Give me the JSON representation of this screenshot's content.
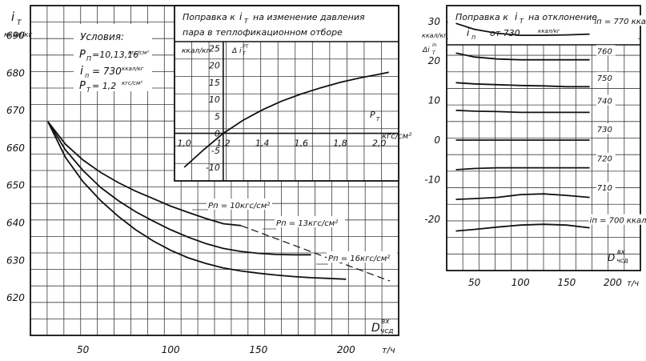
{
  "chart_data": [
    {
      "id": "main",
      "type": "line",
      "ylabel_main": "i",
      "ylabel_sub": "T",
      "ylabel_unit": "ккал/кг",
      "xlabel_main": "D",
      "xlabel_sup": "вх",
      "xlabel_sub": "чсд",
      "x_unit": "т/ч",
      "x_ticks": [
        "50",
        "100",
        "150",
        "200"
      ],
      "y_ticks": [
        "690",
        "680",
        "670",
        "660",
        "650",
        "640",
        "630",
        "620"
      ],
      "xlim": [
        20,
        230
      ],
      "ylim": [
        610,
        698
      ],
      "conditions": {
        "title": "Условия:",
        "line1_text": "P",
        "line1_sub": "П",
        "line1_value": "=10,13,16",
        "line1_unit": "кгс/см²",
        "line2_text": "i",
        "line2_sub": "п",
        "line2_value": "= 730",
        "line2_unit": "ккал/кг",
        "line3_text": "P",
        "line3_sub": "T",
        "line3_value": "= 1,2",
        "line3_unit": "кгс/см²"
      },
      "series": [
        {
          "name": "Pп = 10кгс/см²",
          "x": [
            30,
            40,
            50,
            60,
            70,
            80,
            90,
            100,
            110,
            120,
            130,
            140
          ],
          "y": [
            667,
            661,
            656.8,
            653.5,
            650.8,
            648.5,
            646.5,
            644.5,
            642.8,
            641.2,
            639.8,
            639.3
          ]
        },
        {
          "name": "Pп = 13кгс/см²",
          "x": [
            30,
            40,
            50,
            60,
            70,
            80,
            90,
            100,
            110,
            120,
            130,
            140,
            150,
            160,
            170,
            180
          ],
          "y": [
            667,
            659.5,
            654,
            649.5,
            646,
            643,
            640.5,
            638.2,
            636.2,
            634.5,
            633.2,
            632.4,
            631.9,
            631.6,
            631.5,
            631.5
          ]
        },
        {
          "name": "Pп = 16кгс/см²",
          "x": [
            30,
            40,
            50,
            60,
            70,
            80,
            90,
            100,
            110,
            120,
            130,
            140,
            150,
            160,
            170,
            180,
            190,
            200
          ],
          "y": [
            667,
            657.5,
            651,
            646,
            641.8,
            638.2,
            635.2,
            632.7,
            630.7,
            629.2,
            628,
            627.2,
            626.6,
            626.1,
            625.7,
            625.4,
            625.2,
            625
          ]
        }
      ],
      "dashed_extension": {
        "x": [
          140,
          225
        ],
        "y": [
          639.3,
          624.5
        ]
      }
    },
    {
      "id": "inset",
      "type": "line",
      "title_line1_prefix": "Поправка к",
      "title_line1_var": "i",
      "title_line1_sub": "T",
      "title_line1_suffix": "на изменение давления",
      "title_line2": "пара в теплофикационном отборе",
      "ylabel": "ккал/кг",
      "ylabel_var": "Δ i",
      "ylabel_var_sup": "PT",
      "ylabel_var_sub": "T",
      "xlabel": "P",
      "xlabel_sub": "T",
      "x_unit": "кгс/см²",
      "x_ticks": [
        "1,0",
        "1,2",
        "1,4",
        "1,6",
        "1,8",
        "2,0"
      ],
      "y_ticks": [
        "25",
        "20",
        "15",
        "10",
        "5",
        "0",
        "-5",
        "-10"
      ],
      "xlim": [
        0.95,
        2.1
      ],
      "ylim": [
        -14,
        27
      ],
      "series": [
        {
          "name": "",
          "x": [
            1.0,
            1.1,
            1.2,
            1.3,
            1.4,
            1.5,
            1.6,
            1.7,
            1.8,
            1.9,
            2.0,
            2.05
          ],
          "y": [
            -10,
            -4.8,
            0,
            3.8,
            6.9,
            9.5,
            11.6,
            13.4,
            15,
            16.3,
            17.4,
            18
          ]
        }
      ]
    },
    {
      "id": "right",
      "type": "line",
      "title_line1_prefix": "Поправка к",
      "title_line1_var": "i",
      "title_line1_sub": "T",
      "title_line1_suffix": "на отклонение",
      "title_line2_var": "i",
      "title_line2_sub": "п",
      "title_line2_text": "от 730",
      "title_line2_unit": "ккал/кг",
      "ylabel_unit": "ккал/кг",
      "ylabel_var": "Δi",
      "ylabel_var_sup": "in",
      "ylabel_var_sub": "T",
      "xlabel_main": "D",
      "xlabel_sup": "вх",
      "xlabel_sub": "чсд",
      "x_unit": "т/ч",
      "x_ticks": [
        "50",
        "100",
        "150",
        "200"
      ],
      "y_ticks": [
        "30",
        "20",
        "10",
        "0",
        "-10",
        "-20"
      ],
      "xlim": [
        20,
        230
      ],
      "ylim": [
        -33,
        34
      ],
      "line_labels": [
        {
          "text": "iп = 770 ккал/кг",
          "x": 180,
          "y": 29.5
        },
        {
          "text": "760",
          "x": 183,
          "y": 22
        },
        {
          "text": "750",
          "x": 183,
          "y": 15.2
        },
        {
          "text": "740",
          "x": 183,
          "y": 9.4
        },
        {
          "text": "730",
          "x": 183,
          "y": 2.2
        },
        {
          "text": "720",
          "x": 183,
          "y": -5.2
        },
        {
          "text": "710",
          "x": 183,
          "y": -12.6
        },
        {
          "text": "iп = 700 ккал/кг",
          "x": 175,
          "y": -20.8
        }
      ],
      "series": [
        {
          "name": "770",
          "x": [
            30,
            50,
            75,
            100,
            125,
            150,
            175
          ],
          "y": [
            29.5,
            28,
            27,
            26.5,
            26.5,
            26.6,
            26.8
          ]
        },
        {
          "name": "760",
          "x": [
            30,
            50,
            75,
            100,
            125,
            150,
            175
          ],
          "y": [
            22,
            21,
            20.5,
            20.3,
            20.3,
            20.3,
            20.3
          ]
        },
        {
          "name": "750",
          "x": [
            30,
            50,
            75,
            100,
            125,
            150,
            175
          ],
          "y": [
            14.5,
            14.2,
            14,
            13.8,
            13.7,
            13.5,
            13.5
          ]
        },
        {
          "name": "740",
          "x": [
            30,
            50,
            75,
            100,
            125,
            150,
            175
          ],
          "y": [
            7.5,
            7.3,
            7.2,
            7,
            7,
            7,
            7
          ]
        },
        {
          "name": "730",
          "x": [
            30,
            100,
            175
          ],
          "y": [
            0,
            0,
            0
          ]
        },
        {
          "name": "720",
          "x": [
            30,
            50,
            75,
            100,
            125,
            150,
            175
          ],
          "y": [
            -7.5,
            -7.2,
            -7,
            -7,
            -7,
            -7,
            -7
          ]
        },
        {
          "name": "710",
          "x": [
            30,
            50,
            75,
            100,
            125,
            150,
            175
          ],
          "y": [
            -15,
            -14.8,
            -14.5,
            -13.8,
            -13.6,
            -14,
            -14.5
          ]
        },
        {
          "name": "700",
          "x": [
            30,
            50,
            75,
            100,
            125,
            150,
            175
          ],
          "y": [
            -23,
            -22.6,
            -22,
            -21.5,
            -21.3,
            -21.5,
            -22.2
          ]
        }
      ]
    }
  ]
}
